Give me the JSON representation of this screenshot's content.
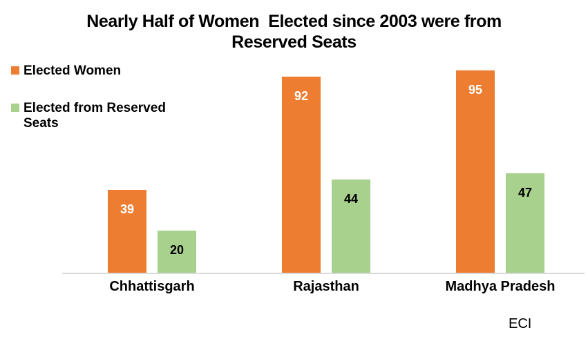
{
  "title": {
    "line1": "Nearly Half of Women  Elected since 2003 were from",
    "line2": "Reserved Seats"
  },
  "legend": [
    {
      "label": "Elected Women",
      "color": "#ED7D31"
    },
    {
      "label": "Elected from Reserved Seats",
      "color": "#A9D18E"
    }
  ],
  "source": "ECI",
  "colors": {
    "orange_series": "#ED7D31",
    "green_series": "#A9D18E",
    "axis_line": "#D9D9D9",
    "title_text": "#000000",
    "label_on_orange": "#FFFFFF",
    "label_on_green": "#000000",
    "background": "#FFFFFF"
  },
  "chart_data": {
    "type": "bar",
    "title": "Nearly Half of Women Elected since 2003 were from Reserved Seats",
    "categories": [
      "Chhattisgarh",
      "Rajasthan",
      "Madhya Pradesh"
    ],
    "series": [
      {
        "name": "Elected Women",
        "color": "#ED7D31",
        "label_color": "#FFFFFF",
        "values": [
          39,
          92,
          95
        ]
      },
      {
        "name": "Elected from Reserved Seats",
        "color": "#A9D18E",
        "label_color": "#000000",
        "values": [
          20,
          44,
          47
        ]
      }
    ],
    "xlabel": "",
    "ylabel": "",
    "ylim": [
      0,
      100
    ],
    "grid": false,
    "y_axis_visible": false,
    "legend_position": "top-left",
    "data_labels": "inside-end",
    "source": "ECI"
  }
}
